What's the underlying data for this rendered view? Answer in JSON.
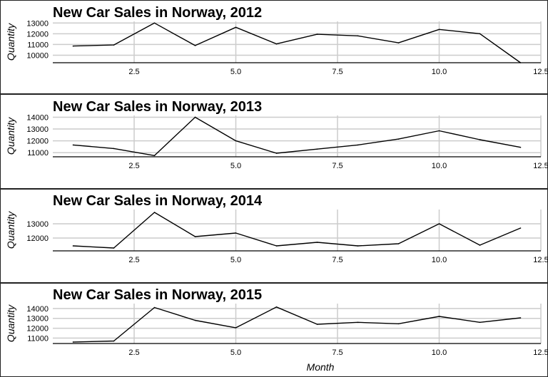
{
  "chart_data": [
    {
      "type": "line",
      "title": "New Car Sales in Norway, 2012",
      "xlabel": "",
      "ylabel": "Quantity",
      "x": [
        1,
        2,
        3,
        4,
        5,
        6,
        7,
        8,
        9,
        10,
        11,
        12
      ],
      "values": [
        10850,
        10950,
        13000,
        10900,
        12600,
        11050,
        11950,
        11800,
        11150,
        12400,
        12000,
        9300
      ],
      "xlim": [
        0.5,
        12.5
      ],
      "ylim": [
        9300,
        13150
      ],
      "xticks": [
        2.5,
        5.0,
        7.5,
        10.0,
        12.5
      ],
      "xtick_labels": [
        "2.5",
        "5.0",
        "7.5",
        "10.0",
        "12.5"
      ],
      "yticks": [
        10000,
        11000,
        12000,
        13000
      ],
      "ytick_labels": [
        "10000",
        "11000",
        "12000",
        "13000"
      ],
      "grid": true
    },
    {
      "type": "line",
      "title": "New Car Sales in Norway, 2013",
      "xlabel": "",
      "ylabel": "Quantity",
      "x": [
        1,
        2,
        3,
        4,
        5,
        6,
        7,
        8,
        9,
        10,
        11,
        12
      ],
      "values": [
        11650,
        11350,
        10750,
        14000,
        12000,
        10950,
        11300,
        11650,
        12150,
        12850,
        12100,
        11450
      ],
      "xlim": [
        0.5,
        12.5
      ],
      "ylim": [
        10650,
        14150
      ],
      "xticks": [
        2.5,
        5.0,
        7.5,
        10.0,
        12.5
      ],
      "xtick_labels": [
        "2.5",
        "5.0",
        "7.5",
        "10.0",
        "12.5"
      ],
      "yticks": [
        11000,
        12000,
        13000,
        14000
      ],
      "ytick_labels": [
        "11000",
        "12000",
        "13000",
        "14000"
      ],
      "grid": true
    },
    {
      "type": "line",
      "title": "New Car Sales in Norway, 2014",
      "xlabel": "",
      "ylabel": "Quantity",
      "x": [
        1,
        2,
        3,
        4,
        5,
        6,
        7,
        8,
        9,
        10,
        11,
        12
      ],
      "values": [
        11450,
        11300,
        13800,
        12100,
        12350,
        11450,
        11700,
        11450,
        11600,
        13000,
        11500,
        12700
      ],
      "xlim": [
        0.5,
        12.5
      ],
      "ylim": [
        11100,
        14000
      ],
      "xticks": [
        2.5,
        5.0,
        7.5,
        10.0,
        12.5
      ],
      "xtick_labels": [
        "2.5",
        "5.0",
        "7.5",
        "10.0",
        "12.5"
      ],
      "yticks": [
        12000,
        13000
      ],
      "ytick_labels": [
        "12000",
        "13000"
      ],
      "grid": true
    },
    {
      "type": "line",
      "title": "New Car Sales in Norway, 2015",
      "xlabel": "Month",
      "ylabel": "Quantity",
      "x": [
        1,
        2,
        3,
        4,
        5,
        6,
        7,
        8,
        9,
        10,
        11,
        12
      ],
      "values": [
        10600,
        10700,
        14100,
        12800,
        12050,
        14150,
        12400,
        12600,
        12450,
        13200,
        12600,
        13050
      ],
      "xlim": [
        0.5,
        12.5
      ],
      "ylim": [
        10450,
        14500
      ],
      "xticks": [
        2.5,
        5.0,
        7.5,
        10.0,
        12.5
      ],
      "xtick_labels": [
        "2.5",
        "5.0",
        "7.5",
        "10.0",
        "12.5"
      ],
      "yticks": [
        11000,
        12000,
        13000,
        14000
      ],
      "ytick_labels": [
        "11000",
        "12000",
        "13000",
        "14000"
      ],
      "grid": true
    }
  ]
}
